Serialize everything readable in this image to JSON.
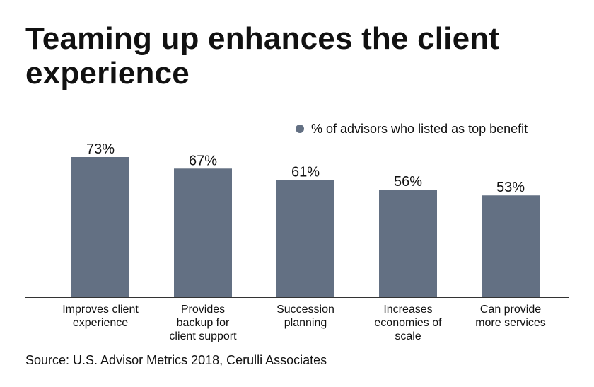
{
  "title": "Teaming up enhances the client experience",
  "source": "Source: U.S. Advisor Metrics 2018, Cerulli Associates",
  "colors": {
    "bar": "#637083",
    "axis": "#333333",
    "legend_dot": "#637083"
  },
  "chart_data": {
    "type": "bar",
    "title": "Teaming up enhances the client experience",
    "categories": [
      [
        "Improves client",
        "experience"
      ],
      [
        "Provides",
        "backup for",
        "client support"
      ],
      [
        "Succession",
        "planning"
      ],
      [
        "Increases",
        "economies of",
        "scale"
      ],
      [
        "Can provide",
        "more services"
      ]
    ],
    "series": [
      {
        "name": "% of advisors who listed as top benefit",
        "values": [
          73,
          67,
          61,
          56,
          53
        ]
      }
    ],
    "data_labels": [
      "73%",
      "67%",
      "61%",
      "56%",
      "53%"
    ],
    "ylim": [
      0,
      73
    ],
    "grid": false,
    "legend_position": "top-right"
  }
}
